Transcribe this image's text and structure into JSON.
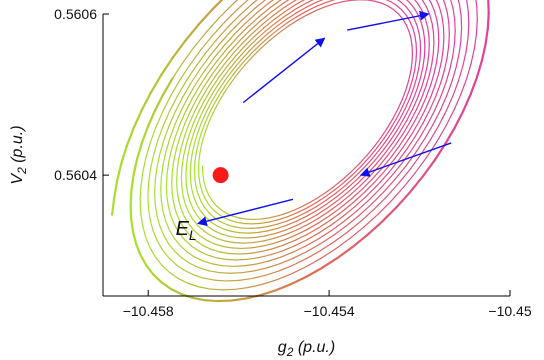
{
  "chart_data": {
    "type": "line",
    "xlabel": {
      "main": "g",
      "sub": "2",
      "unit": " (p.u.)"
    },
    "ylabel": {
      "main": "V",
      "sub": "2",
      "unit": " (p.u.)"
    },
    "xlim": [
      -10.459,
      -10.45
    ],
    "ylim": [
      0.56025,
      0.5606
    ],
    "x_ticks": [
      {
        "value": -10.458,
        "label": "−10.458"
      },
      {
        "value": -10.454,
        "label": "−10.454"
      },
      {
        "value": -10.45,
        "label": "−10.45"
      }
    ],
    "y_ticks": [
      {
        "value": 0.5604,
        "label": "0.5604"
      },
      {
        "value": 0.5606,
        "label": "0.5606"
      }
    ],
    "equilibrium": {
      "x": -10.4564,
      "y": 0.5604,
      "label": "E",
      "label_sub": "L",
      "color": "#ff1a1a"
    },
    "trajectory": {
      "center": [
        -10.4545,
        0.56048
      ],
      "loops": 14,
      "start_radius": [
        0.0043,
        0.000225
      ],
      "end_radius": [
        0.0023,
        0.000115
      ],
      "tilt_slope": 0.03,
      "color_start": "#a6e22e",
      "color_mid": "#e06a5a",
      "color_end": "#e0409e"
    },
    "direction_arrows": [
      {
        "from": [
          -10.4559,
          0.56049
        ],
        "to": [
          -10.4541,
          0.56057
        ]
      },
      {
        "from": [
          -10.4536,
          0.56058
        ],
        "to": [
          -10.4518,
          0.5606
        ]
      },
      {
        "from": [
          -10.4513,
          0.56044
        ],
        "to": [
          -10.4533,
          0.5604
        ]
      },
      {
        "from": [
          -10.4548,
          0.56037
        ],
        "to": [
          -10.4569,
          0.56034
        ]
      }
    ],
    "arrow_color": "#1010ee",
    "grid": false
  }
}
